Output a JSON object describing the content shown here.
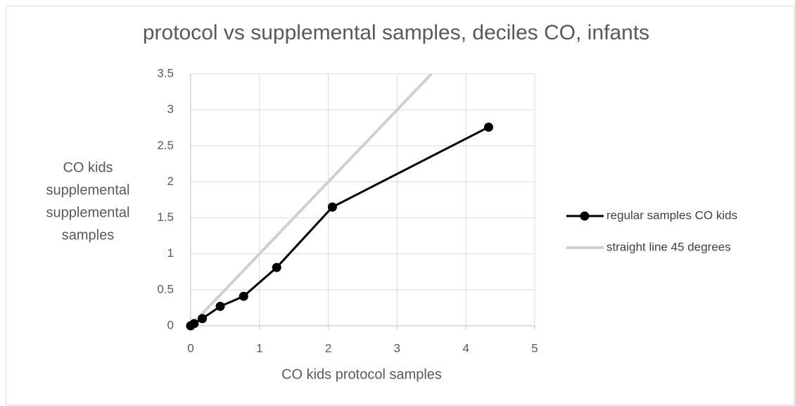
{
  "chart_data": {
    "type": "scatter",
    "title": "protocol vs supplemental samples, deciles CO, infants",
    "xlabel": "CO kids protocol samples",
    "ylabel": [
      "CO kids",
      "supplemental",
      "supplemental",
      "samples"
    ],
    "series": [
      {
        "name": "regular samples CO kids",
        "color": "#000000",
        "markers": true,
        "x": [
          0,
          0.05,
          0.17,
          0.43,
          0.77,
          1.25,
          2.06,
          4.33
        ],
        "values": [
          0,
          0.03,
          0.1,
          0.27,
          0.41,
          0.81,
          1.65,
          2.76
        ]
      },
      {
        "name": "straight line 45 degrees",
        "color": "#d0d0d0",
        "markers": false,
        "x": [
          0,
          3.5
        ],
        "values": [
          0,
          3.5
        ]
      }
    ],
    "xlim": [
      0,
      5
    ],
    "xticks": [
      0,
      1,
      2,
      3,
      4,
      5
    ],
    "ylim": [
      0,
      3.5
    ],
    "yticks": [
      0,
      0.5,
      1,
      1.5,
      2,
      2.5,
      3,
      3.5
    ],
    "grid": true,
    "legend": "right"
  }
}
